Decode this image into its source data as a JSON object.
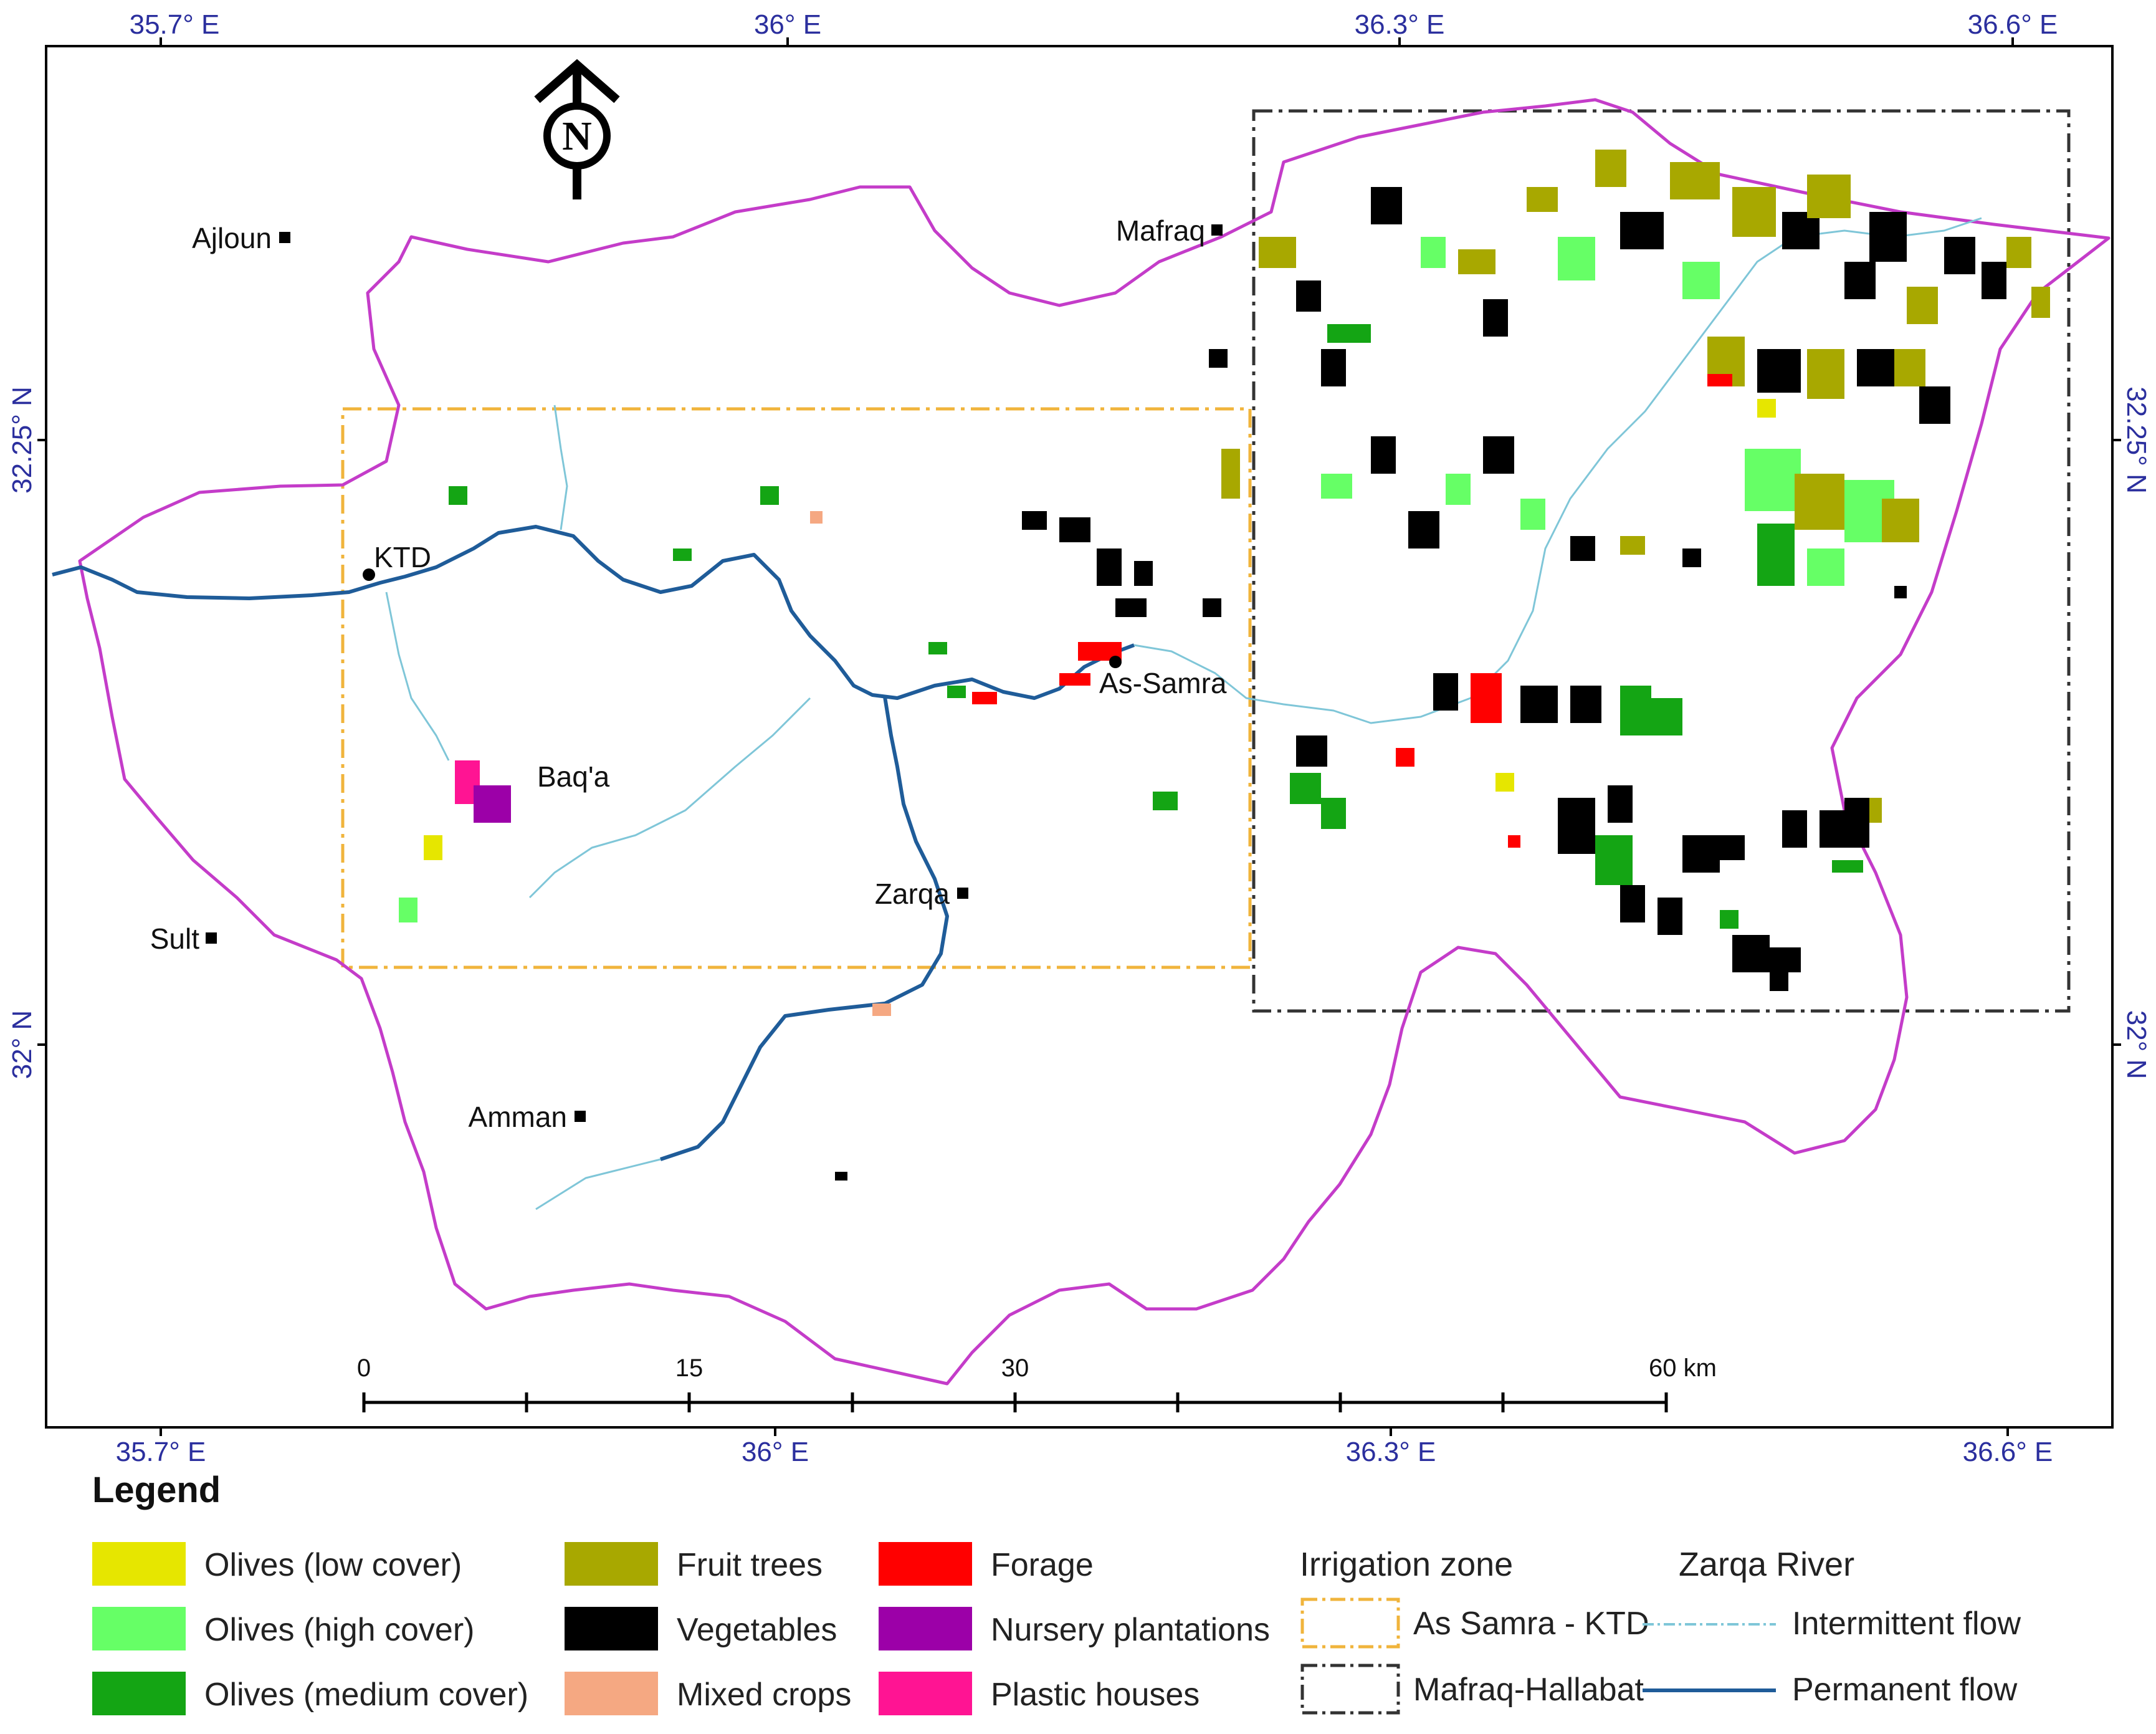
{
  "colors": {
    "catchment_boundary": "#c43cc9",
    "permanent_flow": "#1f5c99",
    "intermittent_flow": "#7fc6d8",
    "as_samra_zone": "#f0b43c",
    "mafraq_zone": "#333333",
    "coord_text": "#2b2f9e"
  },
  "coordinates": {
    "top": [
      "35.7° E",
      "36° E",
      "36.3° E",
      "36.6° E"
    ],
    "bottom": [
      "35.7° E",
      "36° E",
      "36.3° E",
      "36.6° E"
    ],
    "left": [
      "32.25° N",
      "32° N"
    ],
    "right": [
      "32.25° N",
      "32° N"
    ]
  },
  "north_arrow": {
    "letter": "N"
  },
  "cities": [
    {
      "name": "Ajloun"
    },
    {
      "name": "Mafraq"
    },
    {
      "name": "KTD"
    },
    {
      "name": "As-Samra"
    },
    {
      "name": "Baq'a"
    },
    {
      "name": "Zarqa"
    },
    {
      "name": "Sult"
    },
    {
      "name": "Amman"
    }
  ],
  "scale_bar": {
    "labels": [
      "0",
      "15",
      "30",
      "60 km"
    ]
  },
  "legend": {
    "title": "Legend",
    "crop_classes": [
      {
        "label": "Olives (low cover)",
        "color": "#e6e600"
      },
      {
        "label": "Olives (high cover)",
        "color": "#66ff66"
      },
      {
        "label": "Olives (medium cover)",
        "color": "#14a514"
      },
      {
        "label": "Fruit trees",
        "color": "#a8a800"
      },
      {
        "label": "Vegetables",
        "color": "#000000"
      },
      {
        "label": "Mixed crops",
        "color": "#f5a882"
      },
      {
        "label": "Forage",
        "color": "#ff0000"
      },
      {
        "label": "Nursery plantations",
        "color": "#9c00a8"
      },
      {
        "label": "Plastic houses",
        "color": "#ff1493"
      }
    ],
    "irrigation_zone": {
      "heading": "Irrigation zone",
      "items": [
        {
          "label": "As Samra - KTD"
        },
        {
          "label": "Mafraq-Hallabat"
        }
      ]
    },
    "zarqa_river": {
      "heading": "Zarqa River",
      "items": [
        {
          "label": "Intermittent flow"
        },
        {
          "label": "Permanent flow"
        }
      ]
    }
  }
}
